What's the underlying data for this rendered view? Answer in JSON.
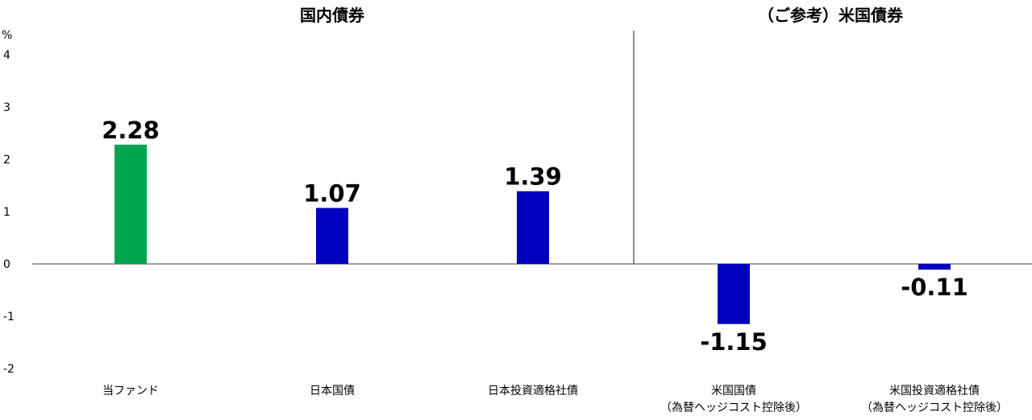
{
  "chart_data": {
    "type": "bar",
    "unit": "%",
    "ylim": [
      -2,
      4
    ],
    "yticks": [
      "4",
      "3",
      "2",
      "1",
      "0",
      "-1",
      "-2"
    ],
    "groups": [
      {
        "title": "国内債券"
      },
      {
        "title": "（ご参考）米国債券"
      }
    ],
    "categories": [
      {
        "lines": [
          "当ファンド"
        ]
      },
      {
        "lines": [
          "日本国債"
        ]
      },
      {
        "lines": [
          "日本投資適格社債"
        ]
      },
      {
        "lines": [
          "米国国債",
          "（為替ヘッジコスト控除後）"
        ]
      },
      {
        "lines": [
          "米国投資適格社債",
          "（為替ヘッジコスト控除後）"
        ]
      }
    ],
    "values": [
      2.28,
      1.07,
      1.39,
      -1.15,
      -0.11
    ],
    "value_labels": [
      "2.28",
      "1.07",
      "1.39",
      "-1.15",
      "-0.11"
    ],
    "colors": [
      "#00a550",
      "#0000bf",
      "#0000bf",
      "#0000bf",
      "#0000bf"
    ]
  }
}
